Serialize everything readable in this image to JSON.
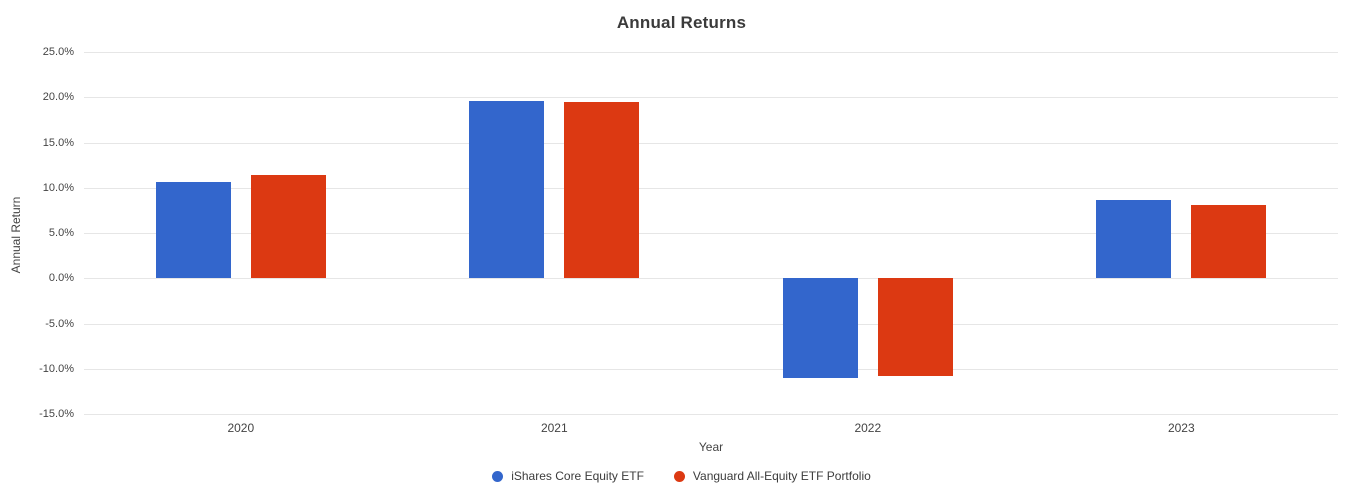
{
  "chart_data": {
    "type": "bar",
    "title": "Annual Returns",
    "xlabel": "Year",
    "ylabel": "Annual Return",
    "categories": [
      "2020",
      "2021",
      "2022",
      "2023"
    ],
    "series": [
      {
        "name": "iShares Core Equity ETF",
        "color": "#3366cc",
        "values": [
          10.6,
          19.6,
          -11.0,
          8.6
        ]
      },
      {
        "name": "Vanguard All-Equity ETF Portfolio",
        "color": "#dc3912",
        "values": [
          11.4,
          19.5,
          -10.8,
          8.1
        ]
      }
    ],
    "ylim": [
      -15,
      25
    ],
    "ytick_step": 5,
    "ytick_labels": [
      "25.0%",
      "20.0%",
      "15.0%",
      "10.0%",
      "5.0%",
      "0.0%",
      "-5.0%",
      "-10.0%",
      "-15.0%"
    ],
    "grid": true,
    "gridline_color": "#e6e6e6",
    "legend_position": "bottom",
    "background_color": "#ffffff"
  }
}
